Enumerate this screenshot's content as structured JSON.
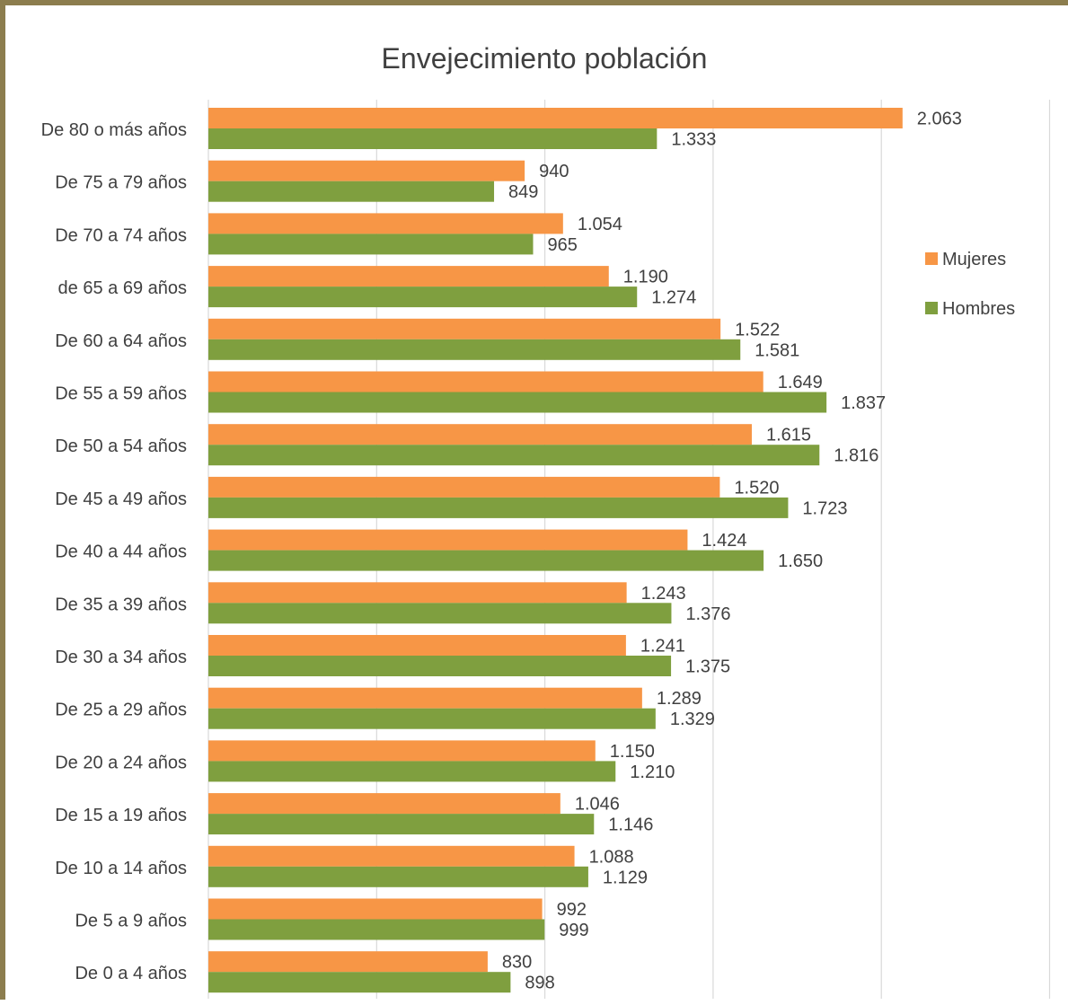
{
  "chart_data": {
    "type": "bar",
    "orientation": "horizontal",
    "title": "Envejecimiento población",
    "categories": [
      "De  80 o más años",
      "De 75 a 79 años",
      "De 70 a 74 años",
      "de 65 a 69 años",
      "De 60 a 64 años",
      "De 55 a 59 años",
      "De 50 a 54 años",
      "De 45 a 49 años",
      "De 40 a 44 años",
      "De 35 a 39 años",
      "De 30 a 34 años",
      "De 25 a 29 años",
      "De 20 a 24 años",
      "De 15 a 19 años",
      "De 10 a 14 años",
      "De 5 a 9 años",
      "De 0 a 4 años"
    ],
    "series": [
      {
        "name": "Mujeres",
        "color": "#f79646",
        "values": [
          2063,
          940,
          1054,
          1190,
          1522,
          1649,
          1615,
          1520,
          1424,
          1243,
          1241,
          1289,
          1150,
          1046,
          1088,
          992,
          830
        ],
        "labels": [
          "2.063",
          "940",
          "1.054",
          "1.190",
          "1.522",
          "1.649",
          "1.615",
          "1.520",
          "1.424",
          "1.243",
          "1.241",
          "1.289",
          "1.150",
          "1.046",
          "1.088",
          "992",
          "830"
        ]
      },
      {
        "name": "Hombres",
        "color": "#7f9f3f",
        "values": [
          1333,
          849,
          965,
          1274,
          1581,
          1837,
          1816,
          1723,
          1650,
          1376,
          1375,
          1329,
          1210,
          1146,
          1129,
          999,
          898
        ],
        "labels": [
          "1.333",
          "849",
          "965",
          "1.274",
          "1.581",
          "1.837",
          "1.816",
          "1.723",
          "1.650",
          "1.376",
          "1.375",
          "1.329",
          "1.210",
          "1.146",
          "1.129",
          "999",
          "898"
        ]
      }
    ],
    "xlim": [
      0,
      2500
    ],
    "grid": true,
    "legend_position": "right"
  }
}
